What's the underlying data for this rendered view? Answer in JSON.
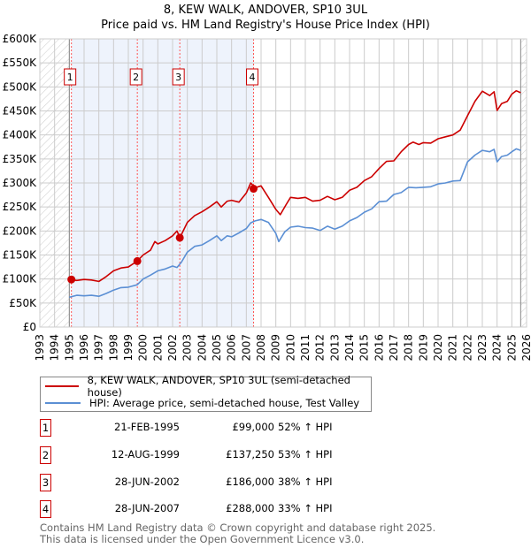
{
  "chart_data": {
    "type": "line",
    "title": "8, KEW WALK, ANDOVER, SP10 3UL",
    "subtitle": "Price paid vs. HM Land Registry's House Price Index (HPI)",
    "xlim": [
      1993,
      2026
    ],
    "ylim": [
      0,
      600000
    ],
    "x_ticks": [
      "1993",
      "1994",
      "1995",
      "1996",
      "1997",
      "1998",
      "1999",
      "2000",
      "2001",
      "2002",
      "2003",
      "2004",
      "2005",
      "2006",
      "2007",
      "2008",
      "2009",
      "2010",
      "2011",
      "2012",
      "2013",
      "2014",
      "2015",
      "2016",
      "2017",
      "2018",
      "2019",
      "2020",
      "2021",
      "2022",
      "2023",
      "2024",
      "2025",
      "2026"
    ],
    "y_ticks": [
      "£0",
      "£50K",
      "£100K",
      "£150K",
      "£200K",
      "£250K",
      "£300K",
      "£350K",
      "£400K",
      "£450K",
      "£500K",
      "£550K",
      "£600K"
    ],
    "grid": true,
    "data_range": [
      1995.0,
      2025.6
    ],
    "ownership_shade": [
      1995.14,
      2007.49
    ],
    "series": [
      {
        "name": "8, KEW WALK, ANDOVER, SP10 3UL (semi-detached house)",
        "color": "#cc0000",
        "x": [
          1995.1,
          1995.5,
          1996,
          1996.5,
          1997,
          1997.5,
          1998,
          1998.5,
          1999,
          1999.6,
          2000,
          2000.5,
          2000.8,
          2001,
          2001.5,
          2002,
          2002.3,
          2002.5,
          2003,
          2003.5,
          2004,
          2004.5,
          2005,
          2005.3,
          2005.7,
          2006,
          2006.5,
          2007,
          2007.3,
          2007.6,
          2008,
          2008.5,
          2009,
          2009.3,
          2009.7,
          2010,
          2010.5,
          2011,
          2011.5,
          2012,
          2012.5,
          2013,
          2013.5,
          2014,
          2014.5,
          2015,
          2015.5,
          2016,
          2016.5,
          2017,
          2017.5,
          2018,
          2018.3,
          2018.7,
          2019,
          2019.5,
          2020,
          2020.5,
          2021,
          2021.5,
          2022,
          2022.5,
          2023,
          2023.5,
          2023.8,
          2024,
          2024.3,
          2024.7,
          2025,
          2025.3,
          2025.6
        ],
        "y": [
          99000,
          97000,
          99000,
          98000,
          95000,
          105000,
          117000,
          123000,
          125000,
          137250,
          150000,
          160000,
          178000,
          173000,
          180000,
          190000,
          200000,
          186000,
          218000,
          232000,
          240000,
          250000,
          261000,
          250000,
          262000,
          264000,
          260000,
          279000,
          300000,
          290000,
          294000,
          270000,
          245000,
          234000,
          255000,
          270000,
          268000,
          270000,
          262000,
          264000,
          272000,
          265000,
          270000,
          285000,
          291000,
          305000,
          313000,
          330000,
          345000,
          346000,
          365000,
          380000,
          385000,
          380000,
          384000,
          383000,
          392000,
          396000,
          400000,
          410000,
          440000,
          470000,
          491000,
          482000,
          490000,
          451000,
          465000,
          470000,
          485000,
          492000,
          488000
        ]
      },
      {
        "name": "HPI: Average price, semi-detached house, Test Valley",
        "color": "#5b8fd4",
        "x": [
          1995.0,
          1995.5,
          1996,
          1996.5,
          1997,
          1997.5,
          1998,
          1998.5,
          1999,
          1999.6,
          2000,
          2000.5,
          2001,
          2001.5,
          2002,
          2002.3,
          2002.6,
          2003,
          2003.5,
          2004,
          2004.5,
          2005,
          2005.3,
          2005.7,
          2006,
          2006.5,
          2007,
          2007.3,
          2007.6,
          2008,
          2008.5,
          2009,
          2009.2,
          2009.6,
          2010,
          2010.5,
          2011,
          2011.5,
          2012,
          2012.5,
          2013,
          2013.5,
          2014,
          2014.5,
          2015,
          2015.5,
          2016,
          2016.5,
          2017,
          2017.5,
          2018,
          2018.5,
          2019,
          2019.5,
          2020,
          2020.5,
          2021,
          2021.5,
          2022,
          2022.5,
          2023,
          2023.5,
          2023.8,
          2024,
          2024.3,
          2024.7,
          2025,
          2025.3,
          2025.6
        ],
        "y": [
          62000,
          66000,
          65000,
          66000,
          64000,
          70000,
          77000,
          82000,
          83000,
          88000,
          100000,
          108000,
          117000,
          121000,
          127000,
          124000,
          135000,
          156000,
          168000,
          171000,
          180000,
          190000,
          180000,
          190000,
          188000,
          196000,
          205000,
          217000,
          221000,
          224000,
          218000,
          195000,
          178000,
          198000,
          208000,
          210000,
          207000,
          206000,
          201000,
          210000,
          204000,
          210000,
          221000,
          228000,
          239000,
          246000,
          261000,
          262000,
          276000,
          280000,
          291000,
          290000,
          291000,
          292000,
          298000,
          300000,
          304000,
          305000,
          344000,
          358000,
          368000,
          365000,
          370000,
          344000,
          355000,
          358000,
          365000,
          371000,
          368000
        ]
      }
    ],
    "sales": [
      {
        "label": "1",
        "x": 1995.14,
        "y": 99000
      },
      {
        "label": "2",
        "x": 1999.61,
        "y": 137250
      },
      {
        "label": "3",
        "x": 2002.49,
        "y": 186000
      },
      {
        "label": "4",
        "x": 2007.49,
        "y": 288000
      }
    ]
  },
  "legend": {
    "property": "8, KEW WALK, ANDOVER, SP10 3UL (semi-detached house)",
    "hpi": "HPI: Average price, semi-detached house, Test Valley"
  },
  "table": [
    {
      "num": "1",
      "date": "21-FEB-1995",
      "price": "£99,000",
      "hpi": "52% ↑ HPI"
    },
    {
      "num": "2",
      "date": "12-AUG-1999",
      "price": "£137,250",
      "hpi": "53% ↑ HPI"
    },
    {
      "num": "3",
      "date": "28-JUN-2002",
      "price": "£186,000",
      "hpi": "38% ↑ HPI"
    },
    {
      "num": "4",
      "date": "28-JUN-2007",
      "price": "£288,000",
      "hpi": "33% ↑ HPI"
    }
  ],
  "footer": {
    "line1": "Contains HM Land Registry data © Crown copyright and database right 2025.",
    "line2": "This data is licensed under the Open Government Licence v3.0."
  }
}
